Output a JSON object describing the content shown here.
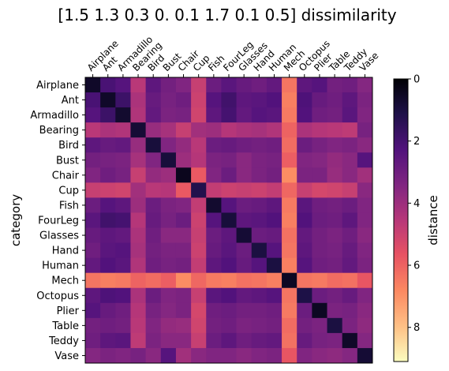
{
  "chart_data": {
    "type": "heatmap",
    "title": "[1.5 1.3 0.3 0.  0.1 1.7 0.1 0.5] dissimilarity",
    "xlabel": "",
    "ylabel": "category",
    "categories": [
      "Airplane",
      "Ant",
      "Armadillo",
      "Bearing",
      "Bird",
      "Bust",
      "Chair",
      "Cup",
      "Fish",
      "FourLeg",
      "Glasses",
      "Hand",
      "Human",
      "Mech",
      "Octopus",
      "Plier",
      "Table",
      "Teddy",
      "Vase"
    ],
    "colormap": "magma_r",
    "colorbar": {
      "label": "distance",
      "range": [
        0,
        9.1
      ],
      "ticks": [
        0,
        2,
        4,
        6,
        8
      ]
    },
    "matrix": [
      [
        0.6,
        2.1,
        2.4,
        4.6,
        2.6,
        3.1,
        3.4,
        4.9,
        2.9,
        2.5,
        2.8,
        3.0,
        2.7,
        6.4,
        2.6,
        2.4,
        3.1,
        3.0,
        3.5
      ],
      [
        2.1,
        0.6,
        1.8,
        4.3,
        2.8,
        3.2,
        3.0,
        5.0,
        2.4,
        1.9,
        2.6,
        2.5,
        2.3,
        6.6,
        2.2,
        2.8,
        3.0,
        2.6,
        3.3
      ],
      [
        2.4,
        1.8,
        0.7,
        4.4,
        2.7,
        3.3,
        3.2,
        5.1,
        2.6,
        2.0,
        2.7,
        2.4,
        2.5,
        6.5,
        2.3,
        3.0,
        3.1,
        2.5,
        3.4
      ],
      [
        4.6,
        4.3,
        4.4,
        0.8,
        3.9,
        4.2,
        4.9,
        4.1,
        4.0,
        4.5,
        4.3,
        4.2,
        4.4,
        6.0,
        4.3,
        4.5,
        4.6,
        4.7,
        3.2
      ],
      [
        2.6,
        2.8,
        2.7,
        3.9,
        0.9,
        3.4,
        3.8,
        4.6,
        2.9,
        2.8,
        3.0,
        3.1,
        3.0,
        6.2,
        2.9,
        3.2,
        3.4,
        3.3,
        3.6
      ],
      [
        3.1,
        3.2,
        3.3,
        4.2,
        3.4,
        0.9,
        4.0,
        4.5,
        3.3,
        3.2,
        3.6,
        3.3,
        3.2,
        5.9,
        3.4,
        3.5,
        3.8,
        3.6,
        2.4
      ],
      [
        3.4,
        3.0,
        3.2,
        4.9,
        3.8,
        4.0,
        0.4,
        5.8,
        3.4,
        2.9,
        3.6,
        3.3,
        3.1,
        6.9,
        3.3,
        3.3,
        3.9,
        3.6,
        4.1
      ],
      [
        4.9,
        5.0,
        5.1,
        4.1,
        4.6,
        4.5,
        5.8,
        1.2,
        4.8,
        5.0,
        4.9,
        5.0,
        4.8,
        6.1,
        4.9,
        5.2,
        5.1,
        4.9,
        3.6
      ],
      [
        2.9,
        2.4,
        2.6,
        4.0,
        2.9,
        3.3,
        3.4,
        4.8,
        0.7,
        2.4,
        2.9,
        2.8,
        2.6,
        6.5,
        2.5,
        3.0,
        3.1,
        2.9,
        3.4
      ],
      [
        2.5,
        1.9,
        2.0,
        4.5,
        2.8,
        3.2,
        2.9,
        5.0,
        2.4,
        0.9,
        2.6,
        2.5,
        2.3,
        6.6,
        2.3,
        2.9,
        3.0,
        2.6,
        3.4
      ],
      [
        2.8,
        2.6,
        2.7,
        4.3,
        3.0,
        3.6,
        3.6,
        4.9,
        2.9,
        2.6,
        0.8,
        2.9,
        2.8,
        6.3,
        2.7,
        3.1,
        3.3,
        3.0,
        3.6
      ],
      [
        3.0,
        2.5,
        2.4,
        4.2,
        3.1,
        3.3,
        3.3,
        5.0,
        2.8,
        2.5,
        2.9,
        1.0,
        2.4,
        6.4,
        2.6,
        3.1,
        3.2,
        2.8,
        3.4
      ],
      [
        2.7,
        2.3,
        2.5,
        4.4,
        3.0,
        3.2,
        3.1,
        4.8,
        2.6,
        2.3,
        2.8,
        2.4,
        1.0,
        6.6,
        2.4,
        3.0,
        3.1,
        2.7,
        3.3
      ],
      [
        6.4,
        6.6,
        6.5,
        6.0,
        6.2,
        5.9,
        6.9,
        6.1,
        6.5,
        6.6,
        6.3,
        6.4,
        6.6,
        0.5,
        6.4,
        6.5,
        6.2,
        6.3,
        5.7
      ],
      [
        2.6,
        2.2,
        2.3,
        4.3,
        2.9,
        3.4,
        3.3,
        4.9,
        2.5,
        2.3,
        2.7,
        2.6,
        2.4,
        6.4,
        1.1,
        2.9,
        3.1,
        2.8,
        3.4
      ],
      [
        2.4,
        2.8,
        3.0,
        4.5,
        3.2,
        3.5,
        3.3,
        5.2,
        3.0,
        2.9,
        3.1,
        3.1,
        3.0,
        6.5,
        2.9,
        0.5,
        3.3,
        3.2,
        3.6
      ],
      [
        3.1,
        3.0,
        3.1,
        4.6,
        3.4,
        3.8,
        3.9,
        5.1,
        3.1,
        3.0,
        3.3,
        3.2,
        3.1,
        6.2,
        3.1,
        3.3,
        1.0,
        3.3,
        3.7
      ],
      [
        3.0,
        2.6,
        2.5,
        4.7,
        3.3,
        3.6,
        3.6,
        4.9,
        2.9,
        2.6,
        3.0,
        2.8,
        2.7,
        6.3,
        2.8,
        3.2,
        3.3,
        0.6,
        3.5
      ],
      [
        3.5,
        3.3,
        3.4,
        3.2,
        3.6,
        2.4,
        4.1,
        3.6,
        3.4,
        3.4,
        3.6,
        3.4,
        3.3,
        5.7,
        3.4,
        3.6,
        3.7,
        3.5,
        0.8
      ]
    ]
  }
}
